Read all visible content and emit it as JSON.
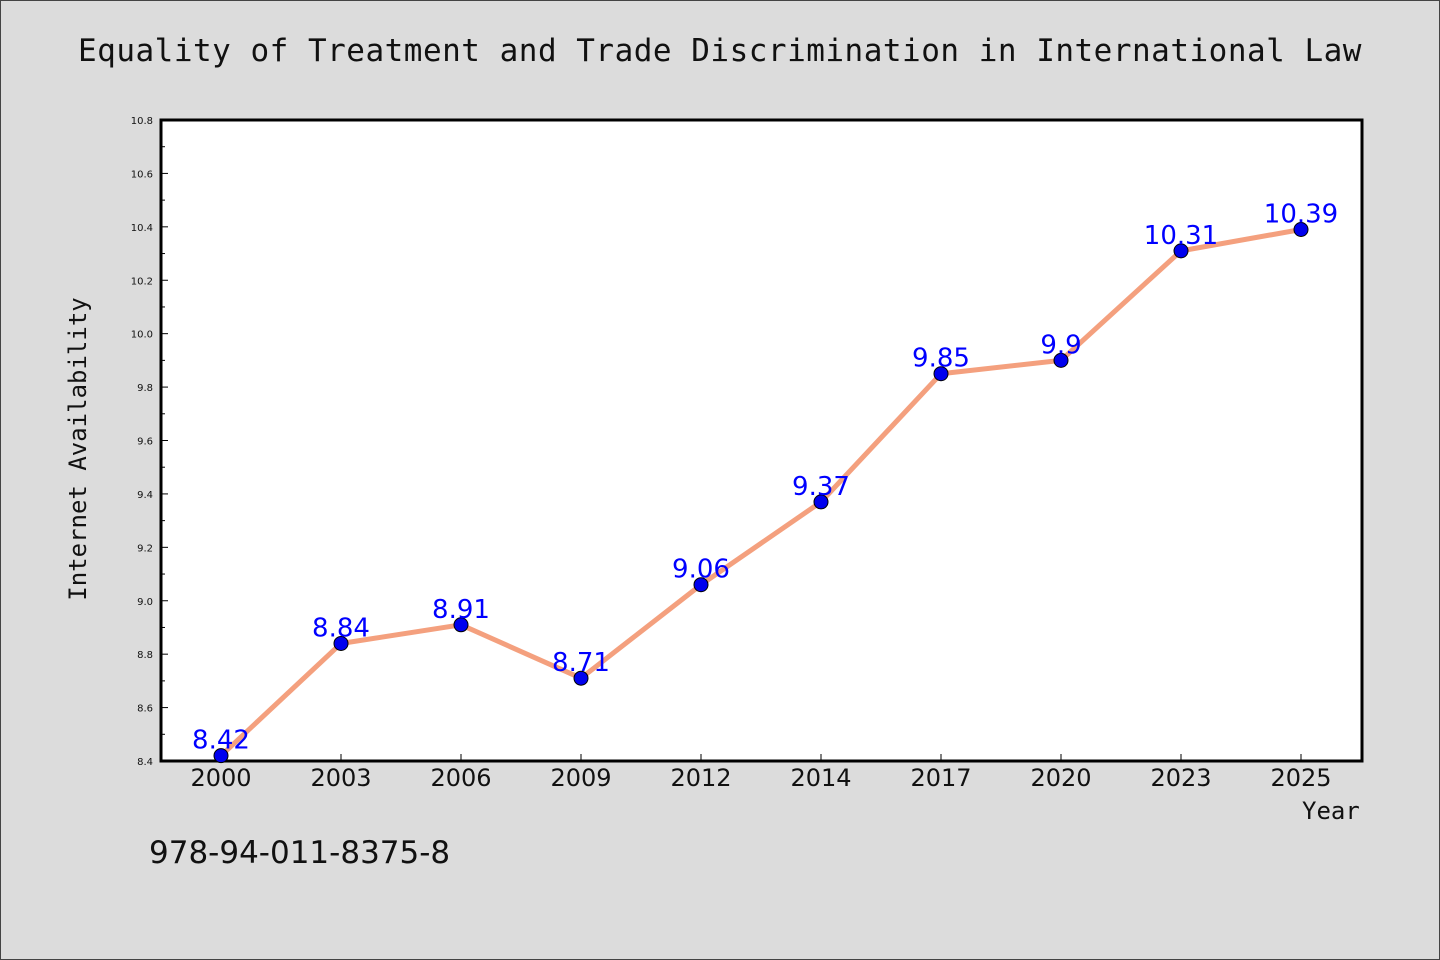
{
  "chart_data": {
    "type": "line",
    "title": "Equality of Treatment and Trade Discrimination in International Law",
    "xlabel": "Year",
    "ylabel": "Internet Availability",
    "categories": [
      "2000",
      "2003",
      "2006",
      "2009",
      "2012",
      "2014",
      "2017",
      "2020",
      "2023",
      "2025"
    ],
    "series": [
      {
        "values": [
          8.42,
          8.84,
          8.91,
          8.71,
          9.06,
          9.37,
          9.85,
          9.9,
          10.31,
          10.39
        ],
        "labels": [
          "8.42",
          "8.84",
          "8.91",
          "8.71",
          "9.06",
          "9.37",
          "9.85",
          "9.9",
          "10.31",
          "10.39"
        ]
      }
    ],
    "ylim": [
      8.4,
      10.8
    ],
    "yticks": [
      "8.4",
      "8.6",
      "8.8",
      "9.0",
      "9.2",
      "9.4",
      "9.6",
      "9.8",
      "10.0",
      "10.2",
      "10.4",
      "10.6",
      "10.8"
    ],
    "grid": false,
    "legend": "none",
    "colors": {
      "line": "#f4a07e",
      "marker": "#0000ee",
      "marker_edge": "#000000",
      "data_label": "#0000ff",
      "background": "#dcdcdc",
      "plot_background": "#ffffff"
    }
  },
  "footer_text": "978-94-011-8375-8"
}
